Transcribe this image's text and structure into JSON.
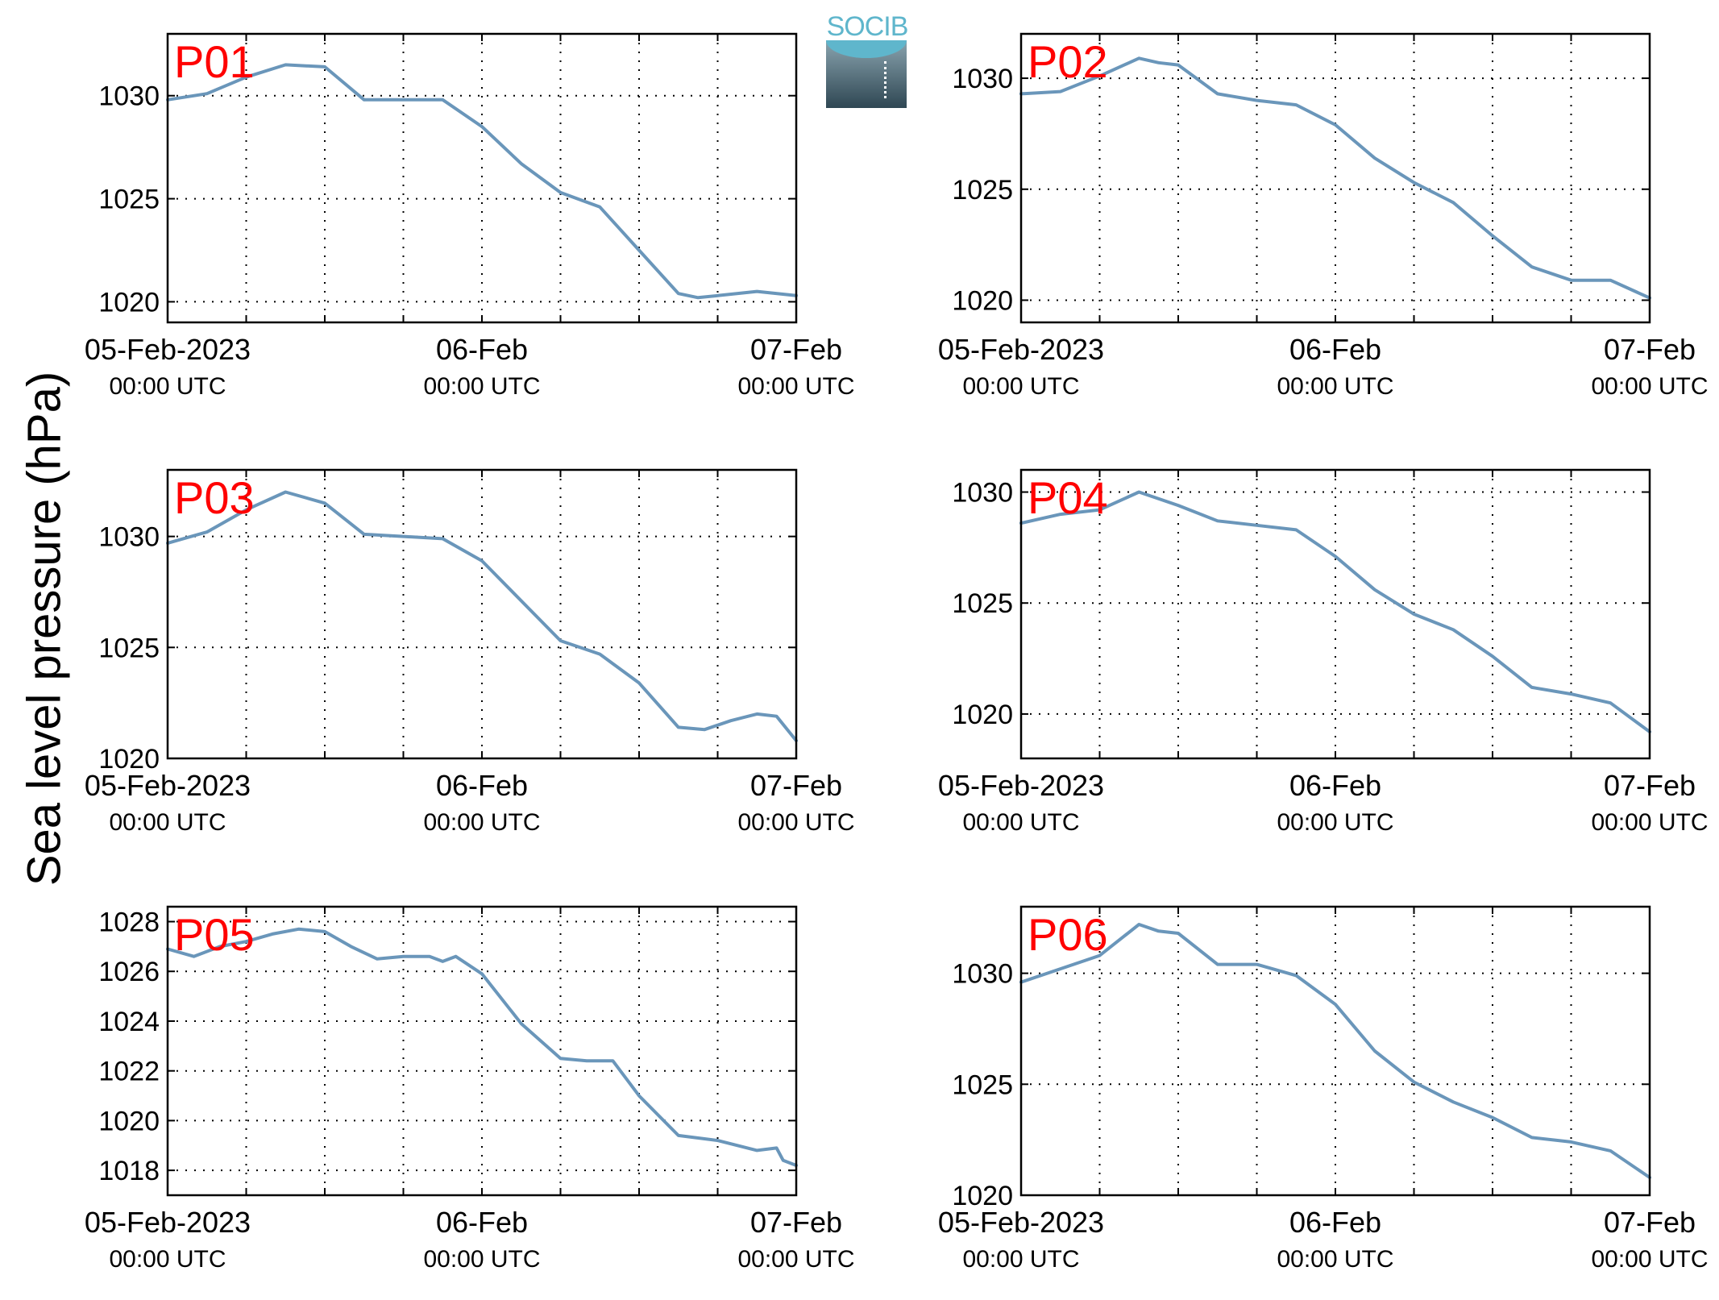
{
  "figure": {
    "ylabel": "Sea level pressure (hPa)",
    "logo_text": "SOCIB"
  },
  "chart_data": [
    {
      "type": "line",
      "label": "P01",
      "ylim": [
        1019,
        1033
      ],
      "yticks": [
        1020,
        1025,
        1030
      ],
      "xlim": [
        "2023-02-05T00:00",
        "2023-02-07T00:00"
      ],
      "xticks": [
        {
          "t": "2023-02-05T00:00",
          "label": "05-Feb-2023",
          "sub": "00:00 UTC"
        },
        {
          "t": "2023-02-06T00:00",
          "label": "06-Feb",
          "sub": "00:00 UTC"
        },
        {
          "t": "2023-02-07T00:00",
          "label": "07-Feb",
          "sub": "00:00 UTC"
        }
      ],
      "grid": true,
      "color": "#6a96ba",
      "x_hours": [
        0,
        3,
        6,
        9,
        12,
        15,
        18,
        21,
        24,
        27,
        30,
        33,
        36,
        39,
        40.5,
        42,
        45,
        48
      ],
      "y": [
        1029.8,
        1030.1,
        1030.9,
        1031.5,
        1031.4,
        1029.8,
        1029.8,
        1029.8,
        1028.5,
        1026.7,
        1025.3,
        1024.6,
        1022.5,
        1020.4,
        1020.2,
        1020.3,
        1020.5,
        1020.3
      ]
    },
    {
      "type": "line",
      "label": "P02",
      "ylim": [
        1019,
        1032
      ],
      "yticks": [
        1020,
        1025,
        1030
      ],
      "xlim": [
        "2023-02-05T00:00",
        "2023-02-07T00:00"
      ],
      "xticks": [
        {
          "t": "2023-02-05T00:00",
          "label": "05-Feb-2023",
          "sub": "00:00 UTC"
        },
        {
          "t": "2023-02-06T00:00",
          "label": "06-Feb",
          "sub": "00:00 UTC"
        },
        {
          "t": "2023-02-07T00:00",
          "label": "07-Feb",
          "sub": "00:00 UTC"
        }
      ],
      "grid": true,
      "color": "#6a96ba",
      "x_hours": [
        0,
        3,
        6,
        9,
        10.5,
        12,
        15,
        18,
        21,
        24,
        27,
        30,
        33,
        36,
        39,
        42,
        45,
        48
      ],
      "y": [
        1029.3,
        1029.4,
        1030.1,
        1030.9,
        1030.7,
        1030.6,
        1029.3,
        1029.0,
        1028.8,
        1027.9,
        1026.4,
        1025.3,
        1024.4,
        1022.9,
        1021.5,
        1020.9,
        1020.9,
        1020.1
      ]
    },
    {
      "type": "line",
      "label": "P03",
      "ylim": [
        1020,
        1033
      ],
      "yticks": [
        1020,
        1025,
        1030
      ],
      "xlim": [
        "2023-02-05T00:00",
        "2023-02-07T00:00"
      ],
      "xticks": [
        {
          "t": "2023-02-05T00:00",
          "label": "05-Feb-2023",
          "sub": "00:00 UTC"
        },
        {
          "t": "2023-02-06T00:00",
          "label": "06-Feb",
          "sub": "00:00 UTC"
        },
        {
          "t": "2023-02-07T00:00",
          "label": "07-Feb",
          "sub": "00:00 UTC"
        }
      ],
      "grid": true,
      "color": "#6a96ba",
      "x_hours": [
        0,
        3,
        6,
        9,
        12,
        15,
        18,
        21,
        24,
        27,
        30,
        33,
        36,
        39,
        41,
        43,
        45,
        46.5,
        48
      ],
      "y": [
        1029.7,
        1030.2,
        1031.2,
        1032.0,
        1031.5,
        1030.1,
        1030.0,
        1029.9,
        1028.9,
        1027.1,
        1025.3,
        1024.7,
        1023.4,
        1021.4,
        1021.3,
        1021.7,
        1022.0,
        1021.9,
        1020.8
      ]
    },
    {
      "type": "line",
      "label": "P04",
      "ylim": [
        1018,
        1031
      ],
      "yticks": [
        1020,
        1025,
        1030
      ],
      "xlim": [
        "2023-02-05T00:00",
        "2023-02-07T00:00"
      ],
      "xticks": [
        {
          "t": "2023-02-05T00:00",
          "label": "05-Feb-2023",
          "sub": "00:00 UTC"
        },
        {
          "t": "2023-02-06T00:00",
          "label": "06-Feb",
          "sub": "00:00 UTC"
        },
        {
          "t": "2023-02-07T00:00",
          "label": "07-Feb",
          "sub": "00:00 UTC"
        }
      ],
      "grid": true,
      "color": "#6a96ba",
      "x_hours": [
        0,
        3,
        6,
        9,
        12,
        15,
        18,
        21,
        24,
        27,
        30,
        33,
        36,
        39,
        42,
        45,
        48
      ],
      "y": [
        1028.6,
        1029.0,
        1029.2,
        1030.0,
        1029.4,
        1028.7,
        1028.5,
        1028.3,
        1027.1,
        1025.6,
        1024.5,
        1023.8,
        1022.6,
        1021.2,
        1020.9,
        1020.5,
        1019.2
      ]
    },
    {
      "type": "line",
      "label": "P05",
      "ylim": [
        1017,
        1028.6
      ],
      "yticks": [
        1018,
        1020,
        1022,
        1024,
        1026,
        1028
      ],
      "xlim": [
        "2023-02-05T00:00",
        "2023-02-07T00:00"
      ],
      "xticks": [
        {
          "t": "2023-02-05T00:00",
          "label": "05-Feb-2023",
          "sub": "00:00 UTC"
        },
        {
          "t": "2023-02-06T00:00",
          "label": "06-Feb",
          "sub": "00:00 UTC"
        },
        {
          "t": "2023-02-07T00:00",
          "label": "07-Feb",
          "sub": "00:00 UTC"
        }
      ],
      "grid": true,
      "color": "#6a96ba",
      "x_hours": [
        0,
        2,
        4,
        6,
        8,
        10,
        12,
        14,
        16,
        18,
        20,
        21,
        22,
        24,
        27,
        30,
        32,
        34,
        36,
        39,
        42,
        45,
        46.5,
        47,
        48
      ],
      "y": [
        1026.9,
        1026.6,
        1027.0,
        1027.2,
        1027.5,
        1027.7,
        1027.6,
        1027.0,
        1026.5,
        1026.6,
        1026.6,
        1026.4,
        1026.6,
        1025.9,
        1023.9,
        1022.5,
        1022.4,
        1022.4,
        1021.0,
        1019.4,
        1019.2,
        1018.8,
        1018.9,
        1018.4,
        1018.2
      ]
    },
    {
      "type": "line",
      "label": "P06",
      "ylim": [
        1020,
        1033
      ],
      "yticks": [
        1020,
        1025,
        1030
      ],
      "xlim": [
        "2023-02-05T00:00",
        "2023-02-07T00:00"
      ],
      "xticks": [
        {
          "t": "2023-02-05T00:00",
          "label": "05-Feb-2023",
          "sub": "00:00 UTC"
        },
        {
          "t": "2023-02-06T00:00",
          "label": "06-Feb",
          "sub": "00:00 UTC"
        },
        {
          "t": "2023-02-07T00:00",
          "label": "07-Feb",
          "sub": "00:00 UTC"
        }
      ],
      "grid": true,
      "color": "#6a96ba",
      "x_hours": [
        0,
        3,
        6,
        9,
        10.5,
        12,
        15,
        18,
        21,
        24,
        27,
        30,
        33,
        36,
        39,
        42,
        45,
        48
      ],
      "y": [
        1029.6,
        1030.2,
        1030.8,
        1032.2,
        1031.9,
        1031.8,
        1030.4,
        1030.4,
        1029.9,
        1028.6,
        1026.5,
        1025.1,
        1024.2,
        1023.5,
        1022.6,
        1022.4,
        1022.0,
        1020.8
      ]
    }
  ]
}
